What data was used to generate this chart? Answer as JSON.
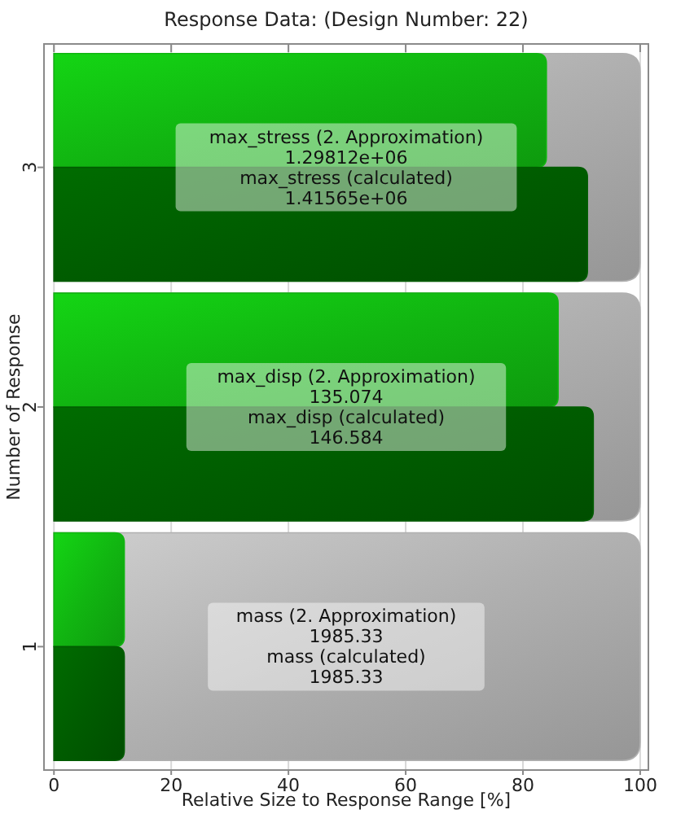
{
  "chart_data": {
    "type": "bar",
    "orientation": "horizontal",
    "title": "Response Data: (Design Number: 22)",
    "xlabel": "Relative Size to Response Range [%]",
    "ylabel": "Number of Response",
    "categories": [
      "3",
      "2",
      "1"
    ],
    "series": [
      {
        "color": "#11b511",
        "values": [
          84,
          86,
          12
        ]
      },
      {
        "color": "#b0b0b0",
        "values": [
          100,
          100,
          100
        ]
      },
      {
        "color": "#005c00",
        "values": [
          91,
          92,
          12
        ]
      }
    ],
    "xlim": [
      -1.7,
      101.4
    ],
    "xticks": [
      0,
      20,
      40,
      60,
      80,
      100
    ],
    "grid": "x",
    "annotations": [
      "max_stress (2. Approximation)",
      "1.29812e+06",
      "max_stress (calculated)",
      "1.41565e+06",
      "max_disp (2. Approximation)",
      "135.074",
      "max_disp (calculated)",
      "146.584",
      "mass (2. Approximation)",
      "1985.33",
      "mass (calculated)",
      "1985.33"
    ]
  }
}
